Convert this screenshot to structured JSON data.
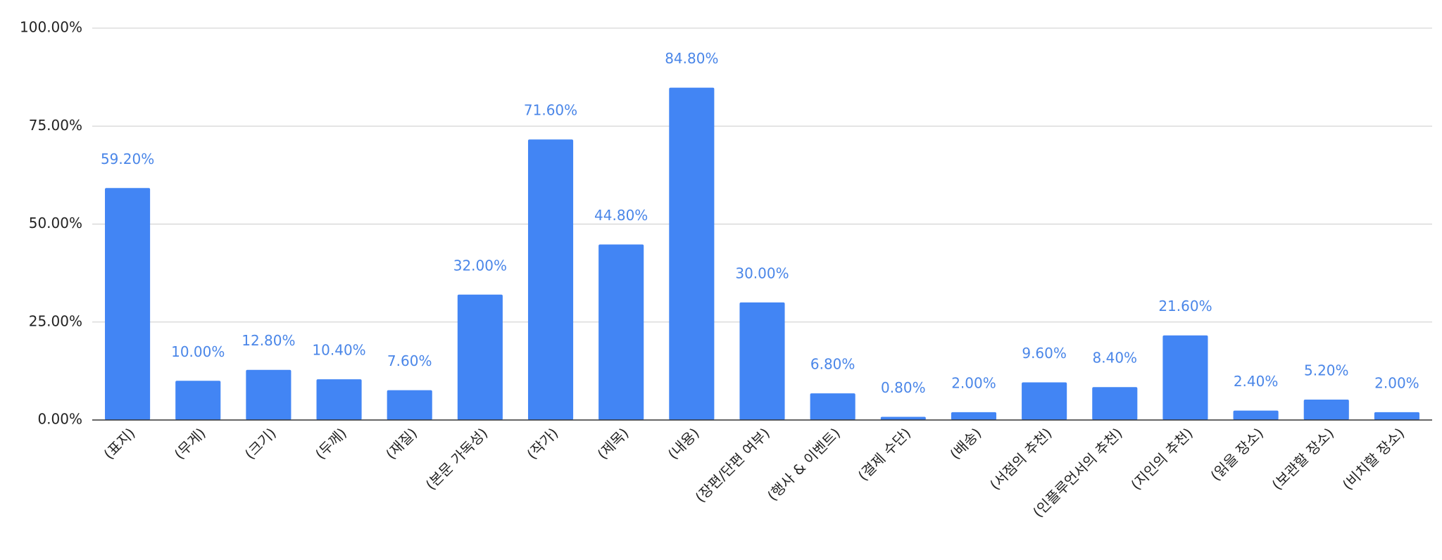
{
  "chart_data": {
    "type": "bar",
    "categories": [
      "(표지)",
      "(무게)",
      "(크기)",
      "(두께)",
      "(재질)",
      "(본문 가독성)",
      "(작가)",
      "(제목)",
      "(내용)",
      "(장편/단편 여부)",
      "(행사 & 이벤트)",
      "(결제 수단)",
      "(배송)",
      "(서점의 추천)",
      "(인플루언서의 추천)",
      "(지인의 추천)",
      "(읽을 장소)",
      "(보관할 장소)",
      "(비치할 장소)"
    ],
    "values": [
      59.2,
      10,
      12.8,
      10.4,
      7.6,
      32,
      71.6,
      44.8,
      84.8,
      30,
      6.8,
      0.8,
      2,
      9.6,
      8.4,
      21.6,
      2.4,
      5.2,
      2
    ],
    "value_labels": [
      "59.20%",
      "10.00%",
      "12.80%",
      "10.40%",
      "7.60%",
      "32.00%",
      "71.60%",
      "44.80%",
      "84.80%",
      "30.00%",
      "6.80%",
      "0.80%",
      "2.00%",
      "9.60%",
      "8.40%",
      "21.60%",
      "2.40%",
      "5.20%",
      "2.00%"
    ],
    "color": "#4285f4",
    "ylim": [
      0,
      100
    ],
    "yticks": [
      {
        "value": 0,
        "label": "0.00%"
      },
      {
        "value": 25,
        "label": "25.00%"
      },
      {
        "value": 50,
        "label": "50.00%"
      },
      {
        "value": 75,
        "label": "75.00%"
      },
      {
        "value": 100,
        "label": "100.00%"
      }
    ],
    "grid": true
  }
}
